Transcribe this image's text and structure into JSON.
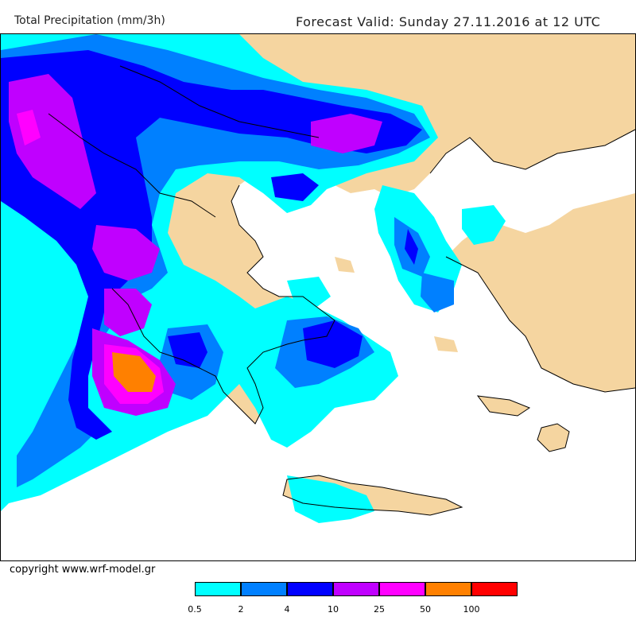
{
  "header": {
    "title": "Total Precipitation (mm/3h)",
    "forecast": "Forecast Valid:  Sunday 27.11.2016 at 12 UTC"
  },
  "footer": {
    "copyright": "copyright www.wrf-model.gr"
  },
  "legend": {
    "colors": [
      "#00ffff",
      "#0080ff",
      "#0000ff",
      "#c000ff",
      "#ff00ff",
      "#ff8000",
      "#ff0000"
    ],
    "labels": [
      "0.5",
      "2",
      "4",
      "10",
      "25",
      "50",
      "100"
    ]
  },
  "map": {
    "land_color": "#f5d5a0",
    "sea_color": "#ffffff",
    "region": "Greece and Aegean Sea"
  }
}
